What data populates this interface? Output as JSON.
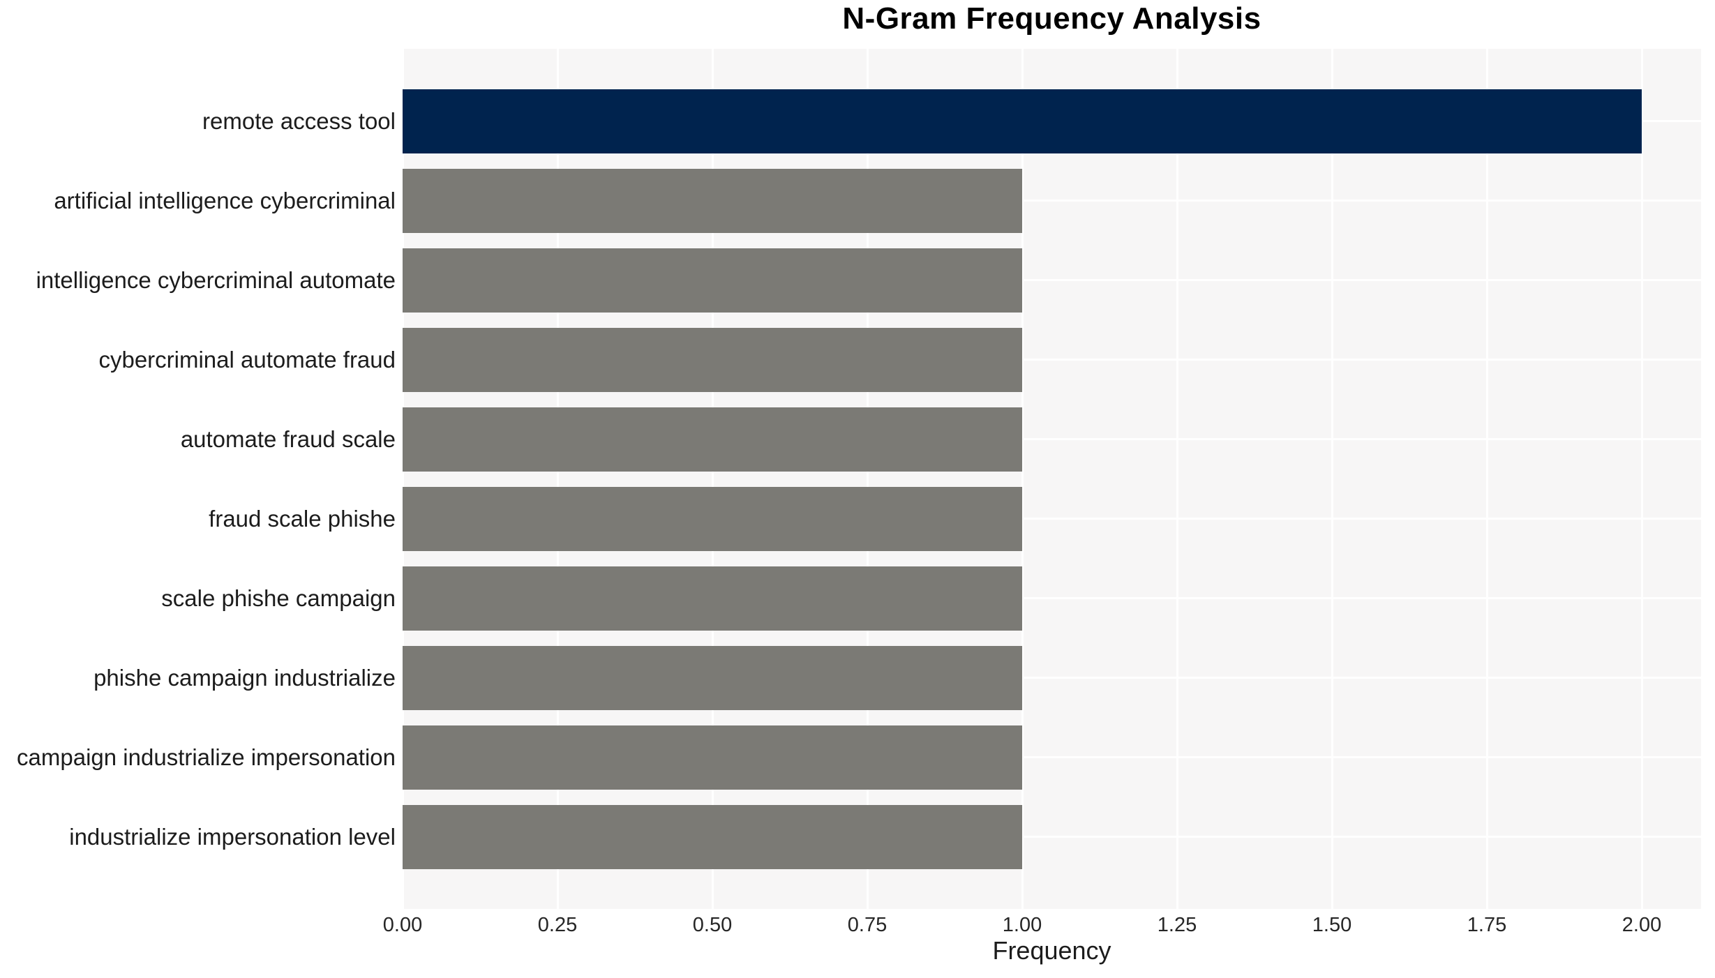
{
  "chart_data": {
    "type": "bar",
    "orientation": "horizontal",
    "title": "N-Gram Frequency Analysis",
    "xlabel": "Frequency",
    "ylabel": "",
    "categories": [
      "remote access tool",
      "artificial intelligence cybercriminal",
      "intelligence cybercriminal automate",
      "cybercriminal automate fraud",
      "automate fraud scale",
      "fraud scale phishe",
      "scale phishe campaign",
      "phishe campaign industrialize",
      "campaign industrialize impersonation",
      "industrialize impersonation level"
    ],
    "values": [
      2,
      1,
      1,
      1,
      1,
      1,
      1,
      1,
      1,
      1
    ],
    "xlim": [
      0,
      2.096
    ],
    "xtick_labels": [
      "0.00",
      "0.25",
      "0.50",
      "0.75",
      "1.00",
      "1.25",
      "1.50",
      "1.75",
      "2.00"
    ],
    "xtick_values": [
      0,
      0.25,
      0.5,
      0.75,
      1.0,
      1.25,
      1.5,
      1.75,
      2.0
    ],
    "grid": true,
    "legend": false,
    "bar_colors": [
      "#00234e",
      "#7b7a75",
      "#7b7a75",
      "#7b7a75",
      "#7b7a75",
      "#7b7a75",
      "#7b7a75",
      "#7b7a75",
      "#7b7a75",
      "#7b7a75"
    ],
    "colors": {
      "highlight_bar": "#00234e",
      "default_bar": "#7b7a75",
      "plot_background": "#f7f6f6",
      "gridline": "#ffffff",
      "figure_background": "#ffffff",
      "tick_text": "#262626",
      "label_text": "#1c1c1c",
      "title_text": "#000000"
    }
  }
}
